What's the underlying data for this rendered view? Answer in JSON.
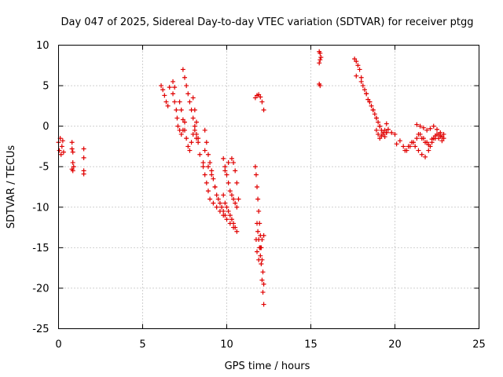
{
  "chart_data": {
    "type": "scatter",
    "title": "Day 047 of 2025, Sidereal Day-to-day VTEC variation (SDTVAR) for receiver ptgg",
    "xlabel": "GPS time / hours",
    "ylabel": "SDTVAR / TECUs",
    "xlim": [
      0,
      25
    ],
    "ylim": [
      -25,
      10
    ],
    "xticks": [
      0,
      5,
      10,
      15,
      20,
      25
    ],
    "yticks": [
      -25,
      -20,
      -15,
      -10,
      -5,
      0,
      5,
      10
    ],
    "grid": true,
    "marker": "plus",
    "color": "#e00000",
    "segments": [
      {
        "x": [
          0.0,
          0.05,
          0.1,
          0.15,
          0.2,
          0.25,
          0.3
        ],
        "y": [
          -2.0,
          -3.0,
          -1.5,
          -3.5,
          -2.5,
          -1.8,
          -3.2
        ]
      },
      {
        "x": [
          0.8,
          0.8,
          0.85,
          0.85,
          0.9,
          0.8,
          0.85
        ],
        "y": [
          -2.0,
          -2.8,
          -3.2,
          -4.5,
          -5.0,
          -5.3,
          -5.5
        ]
      },
      {
        "x": [
          1.5,
          1.5,
          1.5,
          1.5
        ],
        "y": [
          -2.8,
          -3.9,
          -5.5,
          -5.9
        ]
      },
      {
        "x": [
          6.1,
          6.2,
          6.3,
          6.4,
          6.5,
          6.6,
          6.8,
          6.9
        ],
        "y": [
          5.0,
          4.5,
          3.8,
          3.0,
          2.5,
          4.8,
          5.5,
          4.8
        ]
      },
      {
        "x": [
          6.8,
          6.9,
          7.0,
          7.05,
          7.1,
          7.2,
          7.3,
          7.4,
          7.5
        ],
        "y": [
          4.0,
          3.0,
          2.0,
          1.0,
          0.0,
          -0.5,
          -1.0,
          -0.5,
          0.5
        ]
      },
      {
        "x": [
          7.2,
          7.3,
          7.4,
          7.5,
          7.6,
          7.7,
          7.8,
          7.9,
          8.0,
          8.1,
          8.2
        ],
        "y": [
          3.0,
          2.0,
          0.8,
          -0.5,
          -1.5,
          -2.5,
          -3.0,
          -2.0,
          -1.0,
          -0.5,
          -1.5
        ]
      },
      {
        "x": [
          7.4,
          7.5,
          7.6,
          7.7,
          7.8,
          7.9,
          8.0,
          8.1,
          8.2,
          8.3
        ],
        "y": [
          7.0,
          6.0,
          5.0,
          4.0,
          3.0,
          2.0,
          1.0,
          0.0,
          -1.0,
          -2.0
        ]
      },
      {
        "x": [
          8.0,
          8.1,
          8.2,
          8.3,
          8.4,
          8.6,
          8.7,
          8.9,
          9.1,
          9.3
        ],
        "y": [
          3.5,
          2.0,
          0.5,
          -1.5,
          -3.5,
          -4.5,
          -3.0,
          -5.0,
          -6.0,
          -7.5
        ]
      },
      {
        "x": [
          8.7,
          8.8,
          8.9,
          9.0,
          9.1,
          9.2,
          9.3,
          9.4,
          9.5,
          9.6,
          9.7,
          9.8,
          9.9,
          10.0,
          10.2,
          10.4,
          10.6
        ],
        "y": [
          -0.5,
          -2.0,
          -3.5,
          -4.5,
          -5.5,
          -6.5,
          -7.5,
          -8.5,
          -9.0,
          -9.5,
          -10.0,
          -10.5,
          -11.0,
          -11.5,
          -12.0,
          -12.5,
          -13.0
        ]
      },
      {
        "x": [
          8.6,
          8.7,
          8.8,
          8.9,
          9.0,
          9.2,
          9.4,
          9.6,
          9.8
        ],
        "y": [
          -5.0,
          -6.0,
          -7.0,
          -8.0,
          -9.0,
          -9.5,
          -10.0,
          -10.5,
          -11.0
        ]
      },
      {
        "x": [
          9.8,
          9.9,
          10.0,
          10.1,
          10.2,
          10.3,
          10.4,
          10.5,
          10.6,
          10.7,
          10.6,
          10.5,
          10.4,
          10.3,
          10.1,
          9.9
        ],
        "y": [
          -4.0,
          -5.0,
          -6.0,
          -7.0,
          -8.0,
          -8.5,
          -9.0,
          -9.5,
          -10.0,
          -9.0,
          -7.0,
          -5.5,
          -4.5,
          -4.0,
          -4.5,
          -5.5
        ]
      },
      {
        "x": [
          9.8,
          9.9,
          10.0,
          10.1,
          10.2,
          10.3,
          10.4,
          10.5
        ],
        "y": [
          -8.5,
          -9.5,
          -10.0,
          -10.5,
          -11.0,
          -11.5,
          -12.0,
          -12.5
        ]
      },
      {
        "x": [
          11.7,
          11.8,
          11.9,
          12.0,
          12.1,
          12.2
        ],
        "y": [
          3.5,
          3.8,
          3.9,
          3.6,
          3.0,
          2.0
        ]
      },
      {
        "x": [
          11.7,
          11.75,
          11.8,
          11.85,
          11.9,
          11.95,
          12.0,
          12.05,
          12.1,
          12.15,
          12.2
        ],
        "y": [
          -5.0,
          -6.0,
          -7.5,
          -9.0,
          -10.5,
          -12.0,
          -13.5,
          -15.0,
          -16.5,
          -18.0,
          -19.5
        ]
      },
      {
        "x": [
          11.8,
          11.85,
          11.9,
          11.95,
          12.0,
          12.05,
          12.1,
          12.15,
          12.2
        ],
        "y": [
          -12.0,
          -13.0,
          -14.0,
          -15.0,
          -16.0,
          -17.0,
          -19.0,
          -20.5,
          -22.0
        ]
      },
      {
        "x": [
          11.75,
          11.8,
          11.9,
          12.0,
          12.1,
          12.2
        ],
        "y": [
          -14.0,
          -15.5,
          -16.5,
          -15.0,
          -14.0,
          -13.5
        ]
      },
      {
        "x": [
          15.5,
          15.55,
          15.6,
          15.55,
          15.5,
          15.5,
          15.55
        ],
        "y": [
          9.2,
          9.0,
          8.5,
          8.2,
          7.8,
          5.2,
          5.0
        ]
      },
      {
        "x": [
          17.6,
          17.7,
          17.8,
          17.9,
          18.0,
          18.1,
          18.2,
          18.3,
          18.4,
          18.5,
          18.6,
          18.7,
          18.8,
          18.9,
          19.0,
          19.1,
          19.2,
          19.3,
          19.4,
          19.5
        ],
        "y": [
          8.3,
          8.0,
          7.5,
          7.0,
          6.0,
          5.0,
          4.5,
          4.0,
          3.3,
          3.0,
          2.5,
          2.0,
          1.5,
          1.0,
          0.5,
          0.0,
          -0.5,
          -1.0,
          -0.5,
          0.3
        ]
      },
      {
        "x": [
          17.7,
          18.0,
          18.3,
          18.5,
          18.7,
          18.9,
          19.1,
          19.3,
          19.5
        ],
        "y": [
          6.2,
          5.5,
          4.0,
          3.0,
          2.0,
          1.0,
          0.0,
          -0.8,
          -0.8
        ]
      },
      {
        "x": [
          18.9,
          19.0,
          19.1,
          19.2,
          19.3,
          19.4,
          19.5,
          19.6,
          19.8,
          20.0
        ],
        "y": [
          -0.5,
          -1.0,
          -1.5,
          -1.2,
          -0.8,
          -1.3,
          -0.8,
          -0.4,
          -0.8,
          -1.0
        ]
      },
      {
        "x": [
          20.1,
          20.3,
          20.5,
          20.7,
          20.9,
          21.1,
          21.3,
          21.5,
          21.7,
          21.9,
          22.1,
          22.3,
          22.5,
          22.7,
          22.9
        ],
        "y": [
          -2.2,
          -1.8,
          -2.5,
          -3.0,
          -2.5,
          -2.0,
          -1.5,
          -1.0,
          -1.5,
          -2.0,
          -2.5,
          -1.5,
          -1.0,
          -1.2,
          -1.5
        ]
      },
      {
        "x": [
          20.6,
          20.8,
          21.0,
          21.2,
          21.4,
          21.6,
          21.8,
          22.0,
          22.2,
          22.4,
          22.6,
          22.8
        ],
        "y": [
          -3.0,
          -2.5,
          -2.0,
          -2.5,
          -3.0,
          -3.5,
          -3.8,
          -3.0,
          -2.0,
          -1.5,
          -1.0,
          -1.3
        ]
      },
      {
        "x": [
          21.3,
          21.5,
          21.7,
          21.9,
          22.1,
          22.3,
          22.5,
          22.7,
          22.9
        ],
        "y": [
          0.2,
          0.0,
          -0.2,
          -0.5,
          -0.3,
          0.0,
          -0.4,
          -0.8,
          -1.0
        ]
      },
      {
        "x": [
          21.4,
          21.6,
          21.8,
          22.0,
          22.2,
          22.4,
          22.6,
          22.8
        ],
        "y": [
          -1.0,
          -1.5,
          -2.0,
          -2.3,
          -1.6,
          -1.2,
          -1.5,
          -1.8
        ]
      }
    ]
  }
}
